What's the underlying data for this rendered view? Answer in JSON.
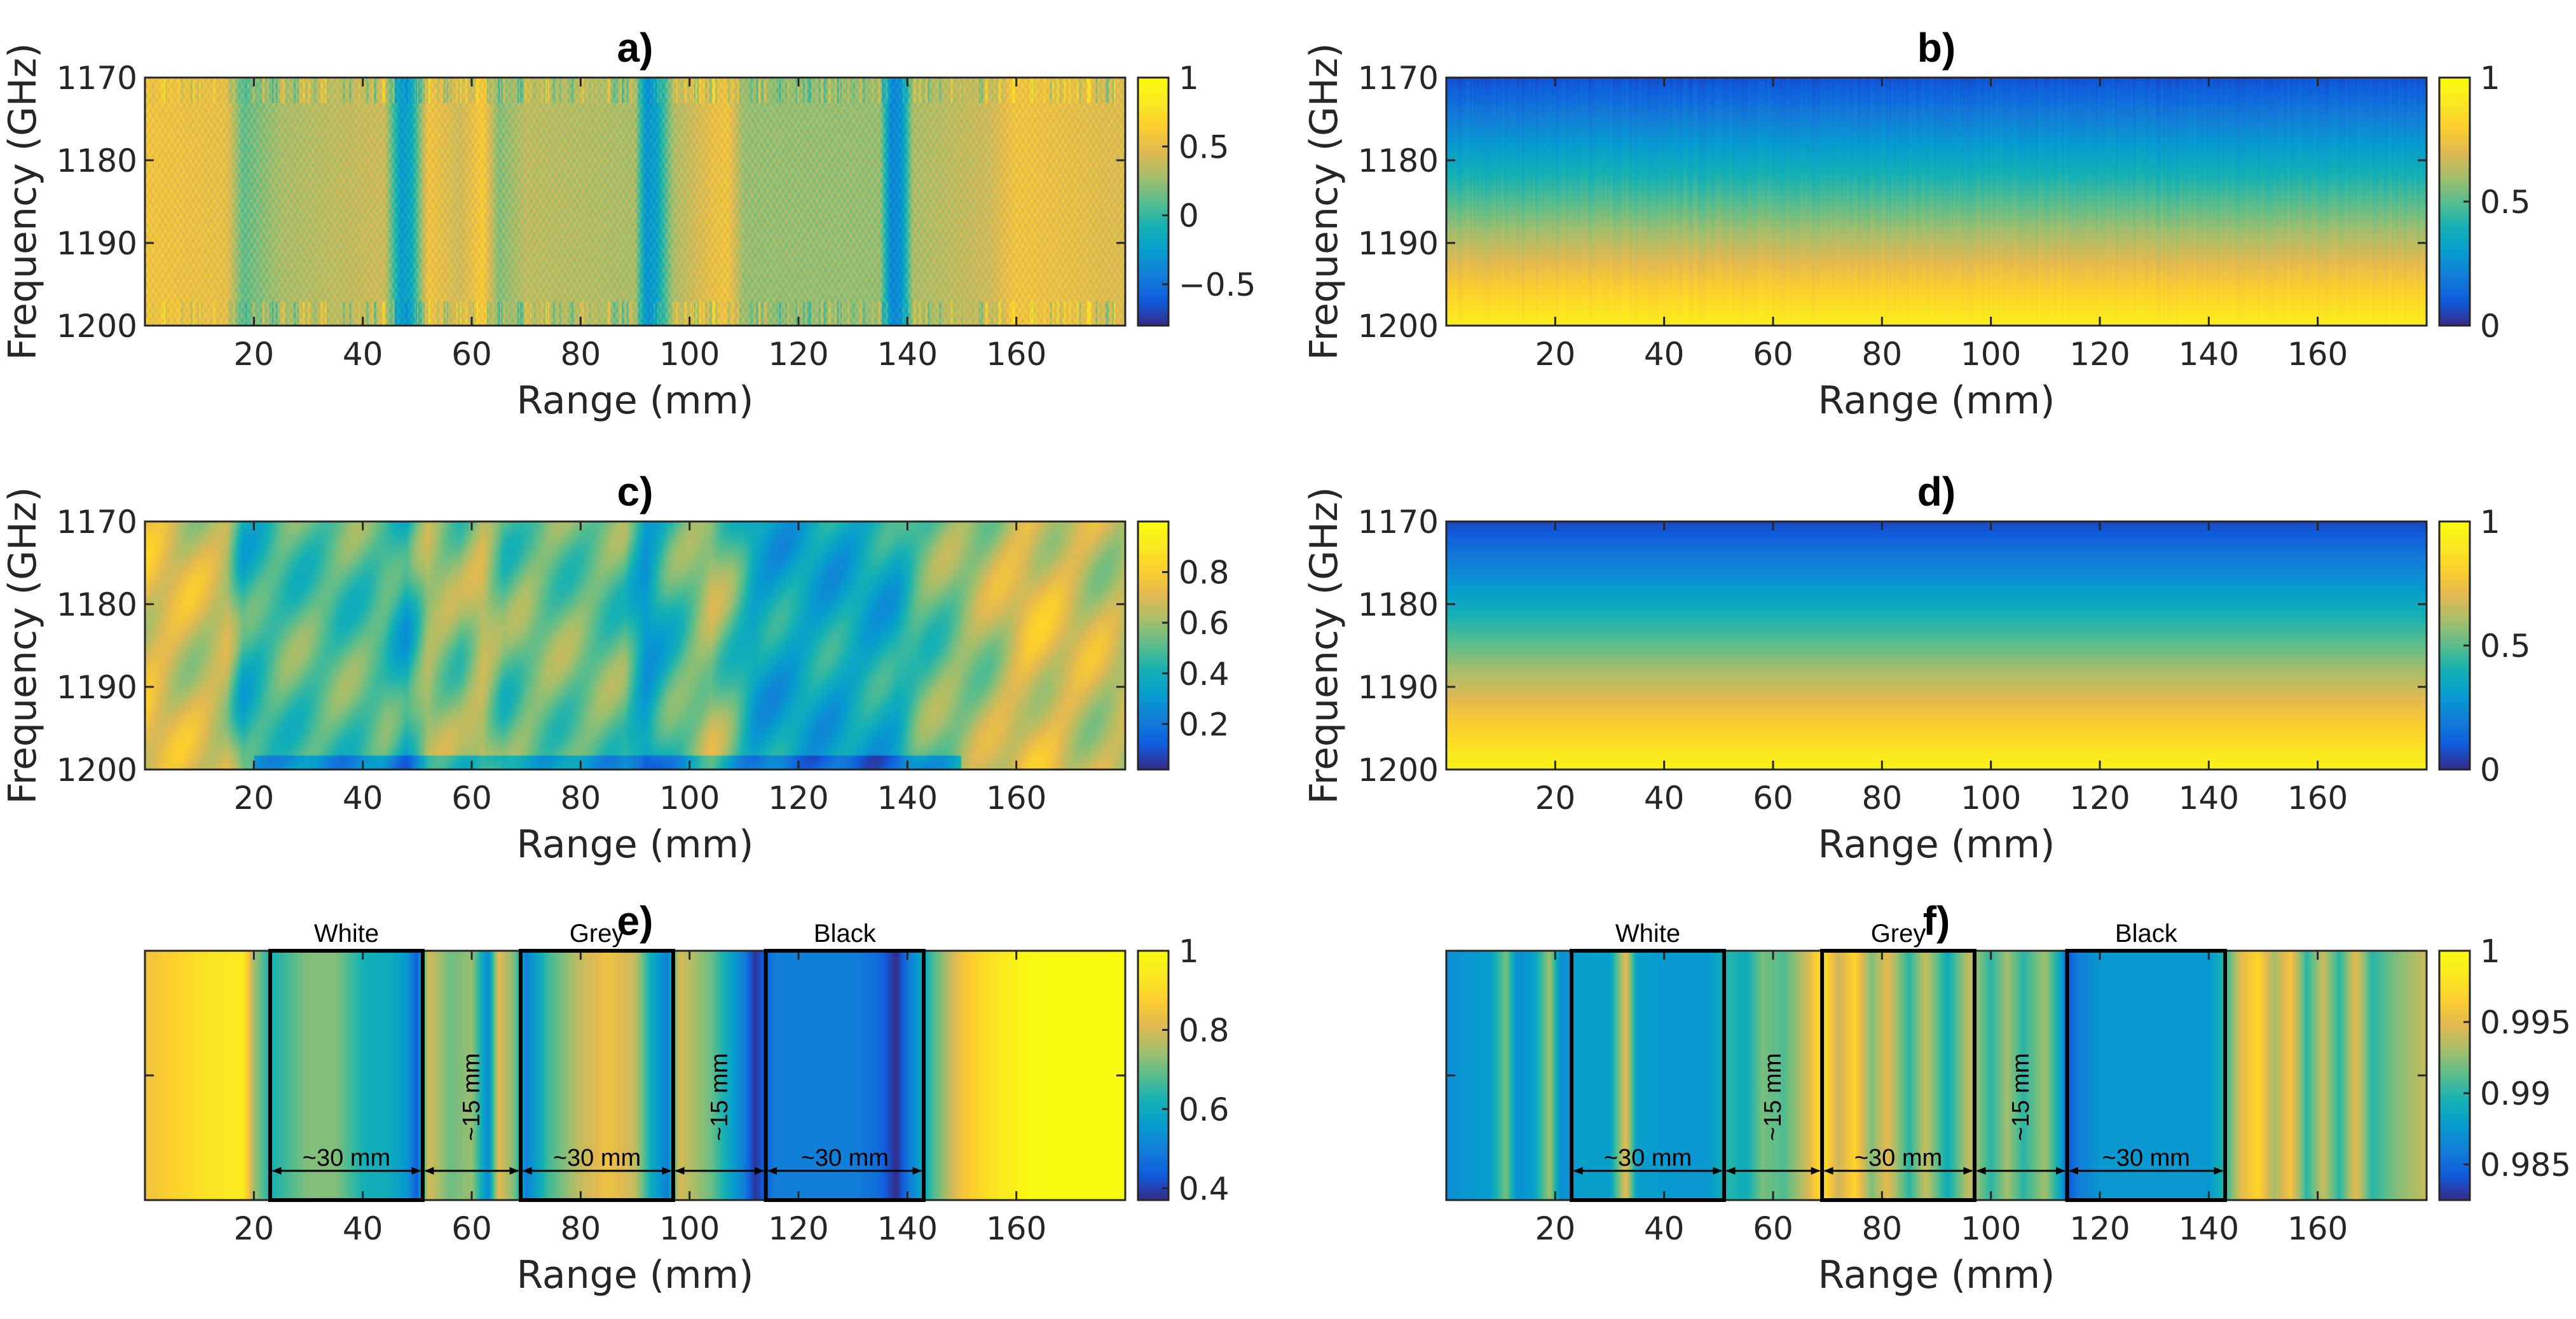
{
  "chart_data": [
    {
      "id": "a",
      "type": "heatmap",
      "title": "a)",
      "xlabel": "Range (mm)",
      "ylabel": "Frequency (GHz)",
      "xlim": [
        0,
        180
      ],
      "ylim": [
        1170,
        1200
      ],
      "xticks": [
        "20",
        "40",
        "60",
        "80",
        "100",
        "120",
        "140",
        "160"
      ],
      "yticks": [
        "1170",
        "1180",
        "1190",
        "1200"
      ],
      "colorbar": {
        "range": [
          -0.8,
          1
        ],
        "ticks": [
          "1",
          "0.5",
          "0",
          "−0.5"
        ],
        "tick_values": [
          1,
          0.5,
          0,
          -0.5
        ]
      },
      "pattern": "signed",
      "column_profile": [
        [
          0,
          0.55
        ],
        [
          15,
          0.5
        ],
        [
          18,
          0.12
        ],
        [
          25,
          0.3
        ],
        [
          44,
          0.4
        ],
        [
          47,
          -0.25
        ],
        [
          49,
          -0.15
        ],
        [
          52,
          0.55
        ],
        [
          58,
          0.4
        ],
        [
          62,
          0.6
        ],
        [
          65,
          0.2
        ],
        [
          70,
          0.35
        ],
        [
          90,
          0.3
        ],
        [
          92,
          -0.3
        ],
        [
          94,
          -0.2
        ],
        [
          97,
          0.3
        ],
        [
          104,
          0.5
        ],
        [
          107,
          0.55
        ],
        [
          110,
          0.25
        ],
        [
          135,
          0.25
        ],
        [
          137,
          -0.4
        ],
        [
          139,
          -0.3
        ],
        [
          141,
          0.3
        ],
        [
          155,
          0.4
        ],
        [
          160,
          0.55
        ],
        [
          180,
          0.45
        ]
      ]
    },
    {
      "id": "b",
      "type": "heatmap",
      "title": "b)",
      "xlabel": "Range (mm)",
      "ylabel": "Frequency (GHz)",
      "xlim": [
        0,
        180
      ],
      "ylim": [
        1170,
        1200
      ],
      "xticks": [
        "20",
        "40",
        "60",
        "80",
        "100",
        "120",
        "140",
        "160"
      ],
      "yticks": [
        "1170",
        "1180",
        "1190",
        "1200"
      ],
      "colorbar": {
        "range": [
          0,
          1
        ],
        "ticks": [
          "1",
          "0.5",
          "0"
        ],
        "tick_values": [
          1,
          0.5,
          0
        ]
      },
      "pattern": "freq_gradient"
    },
    {
      "id": "c",
      "type": "heatmap",
      "title": "c)",
      "xlabel": "Range (mm)",
      "ylabel": "Frequency (GHz)",
      "xlim": [
        0,
        180
      ],
      "ylim": [
        1170,
        1200
      ],
      "xticks": [
        "20",
        "40",
        "60",
        "80",
        "100",
        "120",
        "140",
        "160"
      ],
      "yticks": [
        "1170",
        "1180",
        "1190",
        "1200"
      ],
      "colorbar": {
        "range": [
          0.02,
          1
        ],
        "ticks": [
          "0.8",
          "0.6",
          "0.4",
          "0.2"
        ],
        "tick_values": [
          0.8,
          0.6,
          0.4,
          0.2
        ]
      },
      "pattern": "smooth",
      "column_profile": [
        [
          0,
          0.72
        ],
        [
          15,
          0.65
        ],
        [
          18,
          0.42
        ],
        [
          25,
          0.5
        ],
        [
          44,
          0.5
        ],
        [
          48,
          0.38
        ],
        [
          52,
          0.62
        ],
        [
          58,
          0.55
        ],
        [
          62,
          0.66
        ],
        [
          66,
          0.5
        ],
        [
          70,
          0.55
        ],
        [
          88,
          0.52
        ],
        [
          92,
          0.3
        ],
        [
          96,
          0.45
        ],
        [
          104,
          0.62
        ],
        [
          108,
          0.5
        ],
        [
          112,
          0.35
        ],
        [
          138,
          0.38
        ],
        [
          142,
          0.5
        ],
        [
          155,
          0.62
        ],
        [
          162,
          0.72
        ],
        [
          180,
          0.64
        ]
      ]
    },
    {
      "id": "d",
      "type": "heatmap",
      "title": "d)",
      "xlabel": "Range (mm)",
      "ylabel": "Frequency (GHz)",
      "xlim": [
        0,
        180
      ],
      "ylim": [
        1170,
        1200
      ],
      "xticks": [
        "20",
        "40",
        "60",
        "80",
        "100",
        "120",
        "140",
        "160"
      ],
      "yticks": [
        "1170",
        "1180",
        "1190",
        "1200"
      ],
      "colorbar": {
        "range": [
          0,
          1
        ],
        "ticks": [
          "1",
          "0.5",
          "0"
        ],
        "tick_values": [
          1,
          0.5,
          0
        ]
      },
      "pattern": "freq_gradient_smooth"
    },
    {
      "id": "e",
      "type": "heatmap",
      "title": "e)",
      "xlabel": "Range (mm)",
      "ylabel": "",
      "xlim": [
        0,
        180
      ],
      "xticks": [
        "20",
        "40",
        "60",
        "80",
        "100",
        "120",
        "140",
        "160"
      ],
      "yticks": [],
      "colorbar": {
        "range": [
          0.37,
          1
        ],
        "ticks": [
          "1",
          "0.8",
          "0.6",
          "0.4"
        ],
        "tick_values": [
          1,
          0.8,
          0.6,
          0.4
        ]
      },
      "pattern": "stripes",
      "column_profile": [
        [
          0,
          0.84
        ],
        [
          10,
          0.92
        ],
        [
          18,
          0.95
        ],
        [
          20,
          0.75
        ],
        [
          23,
          0.62
        ],
        [
          30,
          0.72
        ],
        [
          35,
          0.72
        ],
        [
          40,
          0.62
        ],
        [
          45,
          0.6
        ],
        [
          48,
          0.55
        ],
        [
          50,
          0.44
        ],
        [
          52,
          0.8
        ],
        [
          56,
          0.7
        ],
        [
          60,
          0.74
        ],
        [
          63,
          0.52
        ],
        [
          65,
          0.82
        ],
        [
          68,
          0.7
        ],
        [
          70,
          0.5
        ],
        [
          74,
          0.66
        ],
        [
          80,
          0.78
        ],
        [
          85,
          0.84
        ],
        [
          90,
          0.78
        ],
        [
          93,
          0.6
        ],
        [
          96,
          0.5
        ],
        [
          98,
          0.8
        ],
        [
          104,
          0.7
        ],
        [
          110,
          0.5
        ],
        [
          112,
          0.38
        ],
        [
          114,
          0.45
        ],
        [
          116,
          0.5
        ],
        [
          130,
          0.5
        ],
        [
          135,
          0.46
        ],
        [
          138,
          0.37
        ],
        [
          140,
          0.48
        ],
        [
          145,
          0.68
        ],
        [
          150,
          0.85
        ],
        [
          155,
          0.92
        ],
        [
          162,
          0.99
        ],
        [
          180,
          1.0
        ]
      ],
      "regions": [
        {
          "label": "White",
          "x0": 23,
          "x1": 51,
          "width_label": "~30 mm"
        },
        {
          "label": "Grey",
          "x0": 69,
          "x1": 97,
          "width_label": "~30 mm"
        },
        {
          "label": "Black",
          "x0": 114,
          "x1": 143,
          "width_label": "~30 mm"
        }
      ],
      "gaps": [
        {
          "x0": 51,
          "x1": 69,
          "width_label": "~15 mm"
        },
        {
          "x0": 97,
          "x1": 114,
          "width_label": "~15 mm"
        }
      ]
    },
    {
      "id": "f",
      "type": "heatmap",
      "title": "f)",
      "xlabel": "Range (mm)",
      "ylabel": "",
      "xlim": [
        0,
        180
      ],
      "xticks": [
        "20",
        "40",
        "60",
        "80",
        "100",
        "120",
        "140",
        "160"
      ],
      "yticks": [],
      "colorbar": {
        "range": [
          0.9825,
          1.0
        ],
        "ticks": [
          "1",
          "0.995",
          "0.99",
          "0.985"
        ],
        "tick_values": [
          1,
          0.995,
          0.99,
          0.985
        ]
      },
      "pattern": "stripes",
      "column_profile": [
        [
          0,
          0.987
        ],
        [
          8,
          0.988
        ],
        [
          11,
          0.992
        ],
        [
          13,
          0.987
        ],
        [
          16,
          0.988
        ],
        [
          19,
          0.993
        ],
        [
          21,
          0.987
        ],
        [
          25,
          0.988
        ],
        [
          30,
          0.988
        ],
        [
          33,
          0.995
        ],
        [
          35,
          0.988
        ],
        [
          42,
          0.9875
        ],
        [
          48,
          0.9875
        ],
        [
          52,
          0.99
        ],
        [
          55,
          0.989
        ],
        [
          58,
          0.992
        ],
        [
          62,
          0.991
        ],
        [
          66,
          0.994
        ],
        [
          69,
          0.998
        ],
        [
          72,
          0.994
        ],
        [
          75,
          0.997
        ],
        [
          78,
          0.992
        ],
        [
          81,
          0.995
        ],
        [
          85,
          0.99
        ],
        [
          88,
          0.994
        ],
        [
          92,
          0.989
        ],
        [
          96,
          0.994
        ],
        [
          100,
          0.99
        ],
        [
          103,
          0.993
        ],
        [
          106,
          0.99
        ],
        [
          110,
          0.993
        ],
        [
          113,
          0.988
        ],
        [
          114,
          0.984
        ],
        [
          116,
          0.986
        ],
        [
          120,
          0.9875
        ],
        [
          130,
          0.9875
        ],
        [
          140,
          0.9875
        ],
        [
          143,
          0.99
        ],
        [
          146,
          0.995
        ],
        [
          149,
          0.997
        ],
        [
          152,
          0.993
        ],
        [
          155,
          0.996
        ],
        [
          158,
          0.99
        ],
        [
          161,
          0.994
        ],
        [
          164,
          0.99
        ],
        [
          167,
          0.995
        ],
        [
          170,
          0.99
        ],
        [
          174,
          0.992
        ],
        [
          180,
          0.994
        ]
      ],
      "regions": [
        {
          "label": "White",
          "x0": 23,
          "x1": 51,
          "width_label": "~30 mm"
        },
        {
          "label": "Grey",
          "x0": 69,
          "x1": 97,
          "width_label": "~30 mm"
        },
        {
          "label": "Black",
          "x0": 114,
          "x1": 143,
          "width_label": "~30 mm"
        }
      ],
      "gaps": [
        {
          "x0": 51,
          "x1": 69,
          "width_label": "~15 mm"
        },
        {
          "x0": 97,
          "x1": 114,
          "width_label": "~15 mm"
        }
      ]
    }
  ]
}
